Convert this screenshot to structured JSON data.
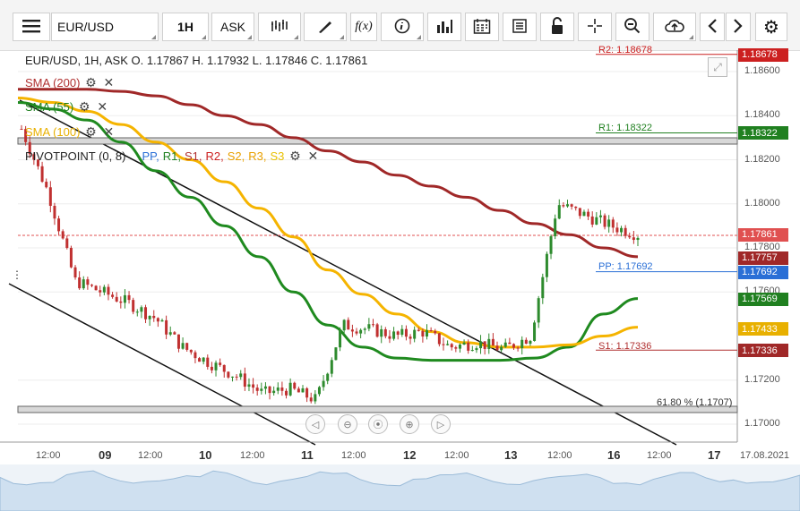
{
  "toolbar": {
    "menu_icon": "hamburger-icon",
    "symbol": "EUR/USD",
    "timeframe": "1H",
    "price_type": "ASK",
    "icons": [
      "chart-type-icon",
      "draw-icon",
      "indicator-function-icon",
      "info-icon",
      "volume-bars-icon",
      "calendar-icon",
      "news-icon",
      "lock-icon",
      "crosshair-icon",
      "zoom-icon",
      "cloud-upload-icon",
      "chevron-left-icon",
      "chevron-right-icon",
      "settings-icon"
    ],
    "fx_label": "f(x)"
  },
  "header": {
    "ohlc": "EUR/USD, 1H, ASK   O. 1.17867 H. 1.17932 L. 1.17846 C. 1.17861"
  },
  "indicators": [
    {
      "label": "SMA (200)",
      "color": "#b03030"
    },
    {
      "label": "SMA (55)",
      "color": "#208020"
    },
    {
      "label": "SMA (100)",
      "color": "#e8b000"
    }
  ],
  "pivot": {
    "name": "PIVOTPOINT (0, 8)",
    "items": [
      {
        "label": "PP,",
        "color": "#2a6fd6"
      },
      {
        "label": "R1,",
        "color": "#208020"
      },
      {
        "label": "S1,",
        "color": "#b03030"
      },
      {
        "label": "R2,",
        "color": "#cc2020"
      },
      {
        "label": "S2,",
        "color": "#e8a000"
      },
      {
        "label": "R3,",
        "color": "#e8a000"
      },
      {
        "label": "S3",
        "color": "#e8c000"
      }
    ]
  },
  "pivot_levels": [
    {
      "label": "R2: 1.18678",
      "value": 1.18678,
      "color": "#cc2020"
    },
    {
      "label": "R1: 1.18322",
      "value": 1.18322,
      "color": "#208020"
    },
    {
      "label": "PP: 1.17692",
      "value": 1.17692,
      "color": "#2a6fd6"
    },
    {
      "label": "S1: 1.17336",
      "value": 1.17336,
      "color": "#b03030"
    }
  ],
  "fib_label": "61.80 % (1.1707)",
  "price_axis": {
    "ticks": [
      "1.18600",
      "1.18400",
      "1.18200",
      "1.18000",
      "1.17800",
      "1.17600",
      "1.17200",
      "1.17000"
    ],
    "tick_values": [
      1.186,
      1.184,
      1.182,
      1.18,
      1.178,
      1.176,
      1.172,
      1.17
    ],
    "labels": [
      {
        "text": "1.18678",
        "value": 1.18678,
        "color": "#cc2020"
      },
      {
        "text": "1.18322",
        "value": 1.18322,
        "color": "#208020"
      },
      {
        "text": "1.17861",
        "value": 1.17861,
        "color": "#e05050"
      },
      {
        "text": "1.17757",
        "value": 1.17757,
        "color": "#a02828"
      },
      {
        "text": "1.17692",
        "value": 1.17692,
        "color": "#2a6fd6"
      },
      {
        "text": "1.17569",
        "value": 1.17569,
        "color": "#208020"
      },
      {
        "text": "1.17433",
        "value": 1.17433,
        "color": "#e8b000"
      },
      {
        "text": "1.17336",
        "value": 1.17336,
        "color": "#a02828"
      }
    ]
  },
  "time_axis": {
    "labels": [
      "12:00",
      "09",
      "12:00",
      "10",
      "12:00",
      "11",
      "12:00",
      "12",
      "12:00",
      "13",
      "12:00",
      "16",
      "12:00",
      "17",
      "17.08.2021"
    ]
  },
  "nav_icons": [
    "scroll-left-icon",
    "zoom-out-icon",
    "reset-zoom-icon",
    "zoom-in-icon",
    "scroll-right-icon"
  ],
  "chart_data": {
    "type": "line",
    "title": "",
    "series": [
      {
        "name": "SMA (200)",
        "values": [
          1.1852,
          1.1852,
          1.1852,
          1.1851,
          1.1849,
          1.1845,
          1.184,
          1.1836,
          1.183,
          1.1824,
          1.1819,
          1.1813,
          1.1808,
          1.1803,
          1.1797,
          1.1791,
          1.1786,
          1.178,
          1.1776
        ]
      },
      {
        "name": "SMA (55)",
        "values": [
          1.1846,
          1.1843,
          1.1838,
          1.1828,
          1.1815,
          1.1803,
          1.179,
          1.1776,
          1.176,
          1.1745,
          1.1735,
          1.173,
          1.1729,
          1.1729,
          1.1729,
          1.173,
          1.1735,
          1.175,
          1.1757
        ]
      },
      {
        "name": "SMA (100)",
        "values": [
          1.1848,
          1.1846,
          1.1842,
          1.1836,
          1.1828,
          1.182,
          1.181,
          1.1798,
          1.1785,
          1.177,
          1.1759,
          1.175,
          1.1742,
          1.1737,
          1.1735,
          1.1735,
          1.1736,
          1.174,
          1.1744
        ]
      }
    ],
    "close": [
      1.1834,
      1.1805,
      1.1765,
      1.176,
      1.1755,
      1.1748,
      1.1735,
      1.1728,
      1.1722,
      1.1714,
      1.1716,
      1.1711,
      1.1745,
      1.1743,
      1.174,
      1.1742,
      1.1735,
      1.1737,
      1.1734,
      1.174,
      1.18,
      1.1795,
      1.179,
      1.1786
    ],
    "last": 1.17861
  }
}
